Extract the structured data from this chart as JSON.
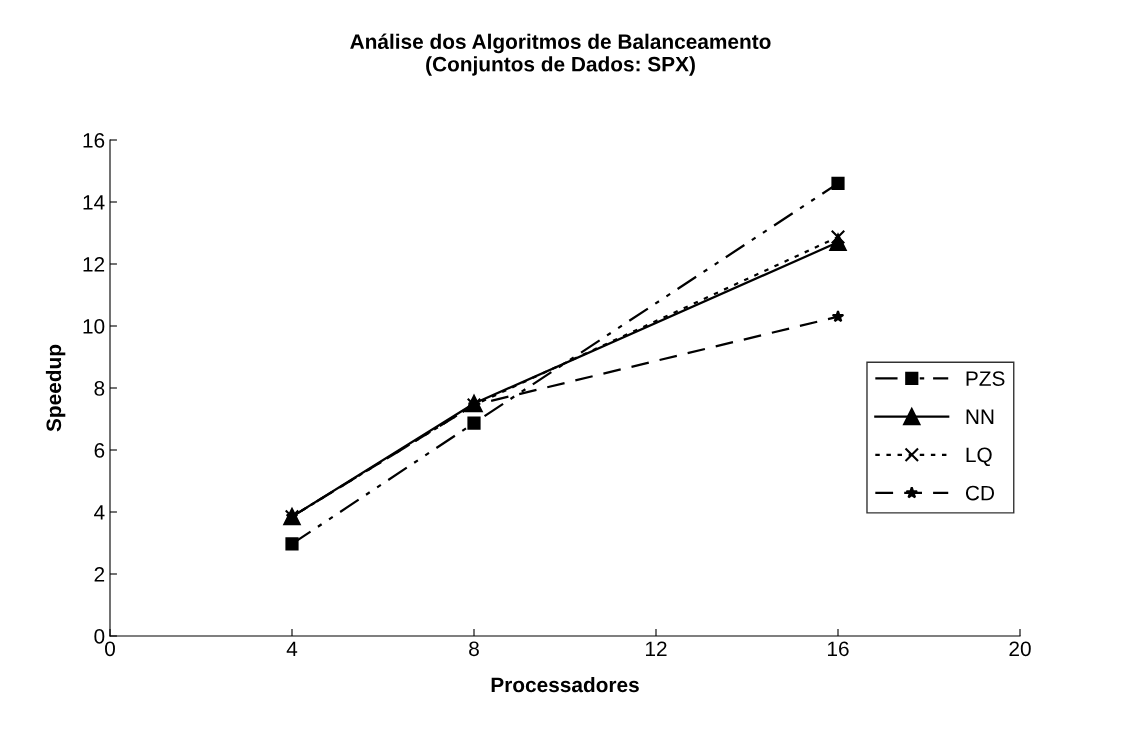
{
  "chart_data": {
    "type": "line",
    "title": "Análise dos Algoritmos de Balanceamento\n(Conjuntos de Dados: SPX)",
    "xlabel": "Processadores",
    "ylabel": "Speedup",
    "x": [
      4,
      8,
      16
    ],
    "series": [
      {
        "name": "PZS",
        "color": "#000000",
        "values": [
          2.97,
          6.87,
          14.6
        ],
        "marker": "square",
        "line_style": "dashdot"
      },
      {
        "name": "NN",
        "color": "#000000",
        "values": [
          3.85,
          7.5,
          12.7
        ],
        "marker": "triangle",
        "line_style": "solid"
      },
      {
        "name": "LQ",
        "color": "#000000",
        "values": [
          3.85,
          7.45,
          12.87
        ],
        "marker": "cross",
        "line_style": "dotted"
      },
      {
        "name": "CD",
        "color": "#000000",
        "values": [
          3.85,
          7.45,
          10.3
        ],
        "marker": "star",
        "line_style": "dashed"
      }
    ],
    "xlim": [
      0,
      20
    ],
    "xticks": [
      0,
      4,
      8,
      12,
      16,
      20
    ],
    "ylim": [
      0,
      16
    ],
    "yticks": [
      0,
      2,
      4,
      6,
      8,
      10,
      12,
      14,
      16
    ],
    "grid": false,
    "legend": "right"
  }
}
